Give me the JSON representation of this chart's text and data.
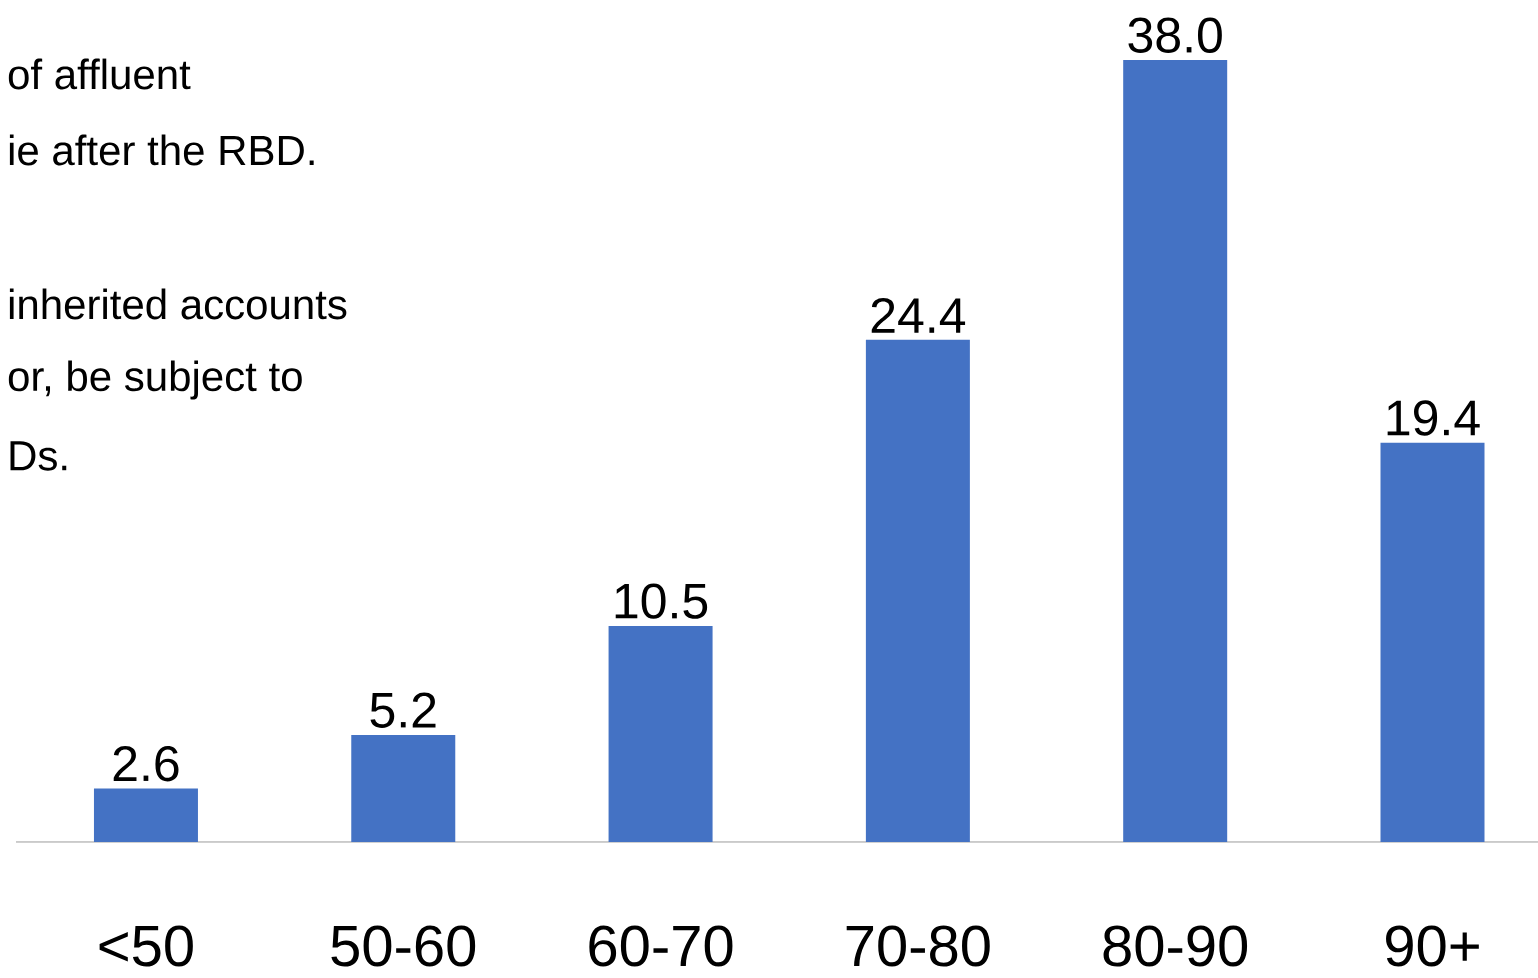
{
  "chart_data": {
    "type": "bar",
    "categories": [
      "<50",
      "50-60",
      "60-70",
      "70-80",
      "80-90",
      "90+"
    ],
    "values": [
      2.6,
      5.2,
      10.5,
      24.4,
      38.0,
      19.4
    ],
    "color": "#4472c4",
    "value_labels": [
      "2.6",
      "5.2",
      "10.5",
      "24.4",
      "38.0",
      "19.4"
    ],
    "annotations": [
      "of affluent",
      "ie after the RBD.",
      "inherited accounts",
      "or, be subject to",
      "Ds."
    ]
  }
}
